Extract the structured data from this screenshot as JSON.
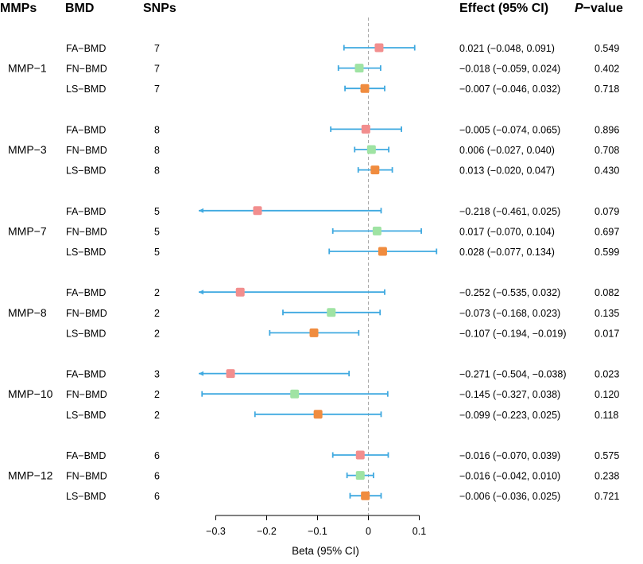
{
  "headers": {
    "mmps": "MMPs",
    "bmd": "BMD",
    "snps": "SNPs",
    "effect": "Effect (95% CI)",
    "pvalue_italic": "P",
    "pvalue_rest": "−value"
  },
  "colors": {
    "FA-BMD": "#f28e8e",
    "FN-BMD": "#9fe3a3",
    "LS-BMD": "#f08c3f",
    "ci_line": "#3fa9e0",
    "ref_line": "#aaaaaa"
  },
  "chart_data": {
    "type": "forest",
    "xlabel": "Beta (95% CI)",
    "xlim": [
      -0.33,
      0.11
    ],
    "xticks": [
      -0.3,
      -0.2,
      -0.1,
      0,
      0.1
    ],
    "xtick_labels": [
      "−0.3",
      "−0.2",
      "−0.1",
      "0",
      "0.1"
    ],
    "reference_line": 0,
    "groups": [
      {
        "name": "MMP−1",
        "rows": [
          {
            "bmd": "FA−BMD",
            "color_key": "FA-BMD",
            "snps": "7",
            "beta": 0.021,
            "lo": -0.048,
            "hi": 0.091,
            "lo_arrow": false,
            "effect": "0.021 (−0.048, 0.091)",
            "p": "0.549"
          },
          {
            "bmd": "FN−BMD",
            "color_key": "FN-BMD",
            "snps": "7",
            "beta": -0.018,
            "lo": -0.059,
            "hi": 0.024,
            "lo_arrow": false,
            "effect": "−0.018 (−0.059, 0.024)",
            "p": "0.402"
          },
          {
            "bmd": "LS−BMD",
            "color_key": "LS-BMD",
            "snps": "7",
            "beta": -0.007,
            "lo": -0.046,
            "hi": 0.032,
            "lo_arrow": false,
            "effect": "−0.007 (−0.046, 0.032)",
            "p": "0.718"
          }
        ]
      },
      {
        "name": "MMP−3",
        "rows": [
          {
            "bmd": "FA−BMD",
            "color_key": "FA-BMD",
            "snps": "8",
            "beta": -0.005,
            "lo": -0.074,
            "hi": 0.065,
            "lo_arrow": false,
            "effect": "−0.005 (−0.074, 0.065)",
            "p": "0.896"
          },
          {
            "bmd": "FN−BMD",
            "color_key": "FN-BMD",
            "snps": "8",
            "beta": 0.006,
            "lo": -0.027,
            "hi": 0.04,
            "lo_arrow": false,
            "effect": "0.006 (−0.027, 0.040)",
            "p": "0.708"
          },
          {
            "bmd": "LS−BMD",
            "color_key": "LS-BMD",
            "snps": "8",
            "beta": 0.013,
            "lo": -0.02,
            "hi": 0.047,
            "lo_arrow": false,
            "effect": "0.013 (−0.020, 0.047)",
            "p": "0.430"
          }
        ]
      },
      {
        "name": "MMP−7",
        "rows": [
          {
            "bmd": "FA−BMD",
            "color_key": "FA-BMD",
            "snps": "5",
            "beta": -0.218,
            "lo": -0.461,
            "hi": 0.025,
            "lo_arrow": true,
            "effect": "−0.218 (−0.461, 0.025)",
            "p": "0.079"
          },
          {
            "bmd": "FN−BMD",
            "color_key": "FN-BMD",
            "snps": "5",
            "beta": 0.017,
            "lo": -0.07,
            "hi": 0.104,
            "lo_arrow": false,
            "effect": "0.017 (−0.070, 0.104)",
            "p": "0.697"
          },
          {
            "bmd": "LS−BMD",
            "color_key": "LS-BMD",
            "snps": "5",
            "beta": 0.028,
            "lo": -0.077,
            "hi": 0.134,
            "lo_arrow": false,
            "effect": "0.028 (−0.077, 0.134)",
            "p": "0.599"
          }
        ]
      },
      {
        "name": "MMP−8",
        "rows": [
          {
            "bmd": "FA−BMD",
            "color_key": "FA-BMD",
            "snps": "2",
            "beta": -0.252,
            "lo": -0.535,
            "hi": 0.032,
            "lo_arrow": true,
            "effect": "−0.252 (−0.535, 0.032)",
            "p": "0.082"
          },
          {
            "bmd": "FN−BMD",
            "color_key": "FN-BMD",
            "snps": "2",
            "beta": -0.073,
            "lo": -0.168,
            "hi": 0.023,
            "lo_arrow": false,
            "effect": "−0.073 (−0.168, 0.023)",
            "p": "0.135"
          },
          {
            "bmd": "LS−BMD",
            "color_key": "LS-BMD",
            "snps": "2",
            "beta": -0.107,
            "lo": -0.194,
            "hi": -0.019,
            "lo_arrow": false,
            "effect": "−0.107 (−0.194, −0.019)",
            "p": "0.017"
          }
        ]
      },
      {
        "name": "MMP−10",
        "rows": [
          {
            "bmd": "FA−BMD",
            "color_key": "FA-BMD",
            "snps": "3",
            "beta": -0.271,
            "lo": -0.504,
            "hi": -0.038,
            "lo_arrow": true,
            "effect": "−0.271 (−0.504, −0.038)",
            "p": "0.023"
          },
          {
            "bmd": "FN−BMD",
            "color_key": "FN-BMD",
            "snps": "2",
            "beta": -0.145,
            "lo": -0.327,
            "hi": 0.038,
            "lo_arrow": false,
            "effect": "−0.145 (−0.327, 0.038)",
            "p": "0.120"
          },
          {
            "bmd": "LS−BMD",
            "color_key": "LS-BMD",
            "snps": "2",
            "beta": -0.099,
            "lo": -0.223,
            "hi": 0.025,
            "lo_arrow": false,
            "effect": "−0.099 (−0.223, 0.025)",
            "p": "0.118"
          }
        ]
      },
      {
        "name": "MMP−12",
        "rows": [
          {
            "bmd": "FA−BMD",
            "color_key": "FA-BMD",
            "snps": "6",
            "beta": -0.016,
            "lo": -0.07,
            "hi": 0.039,
            "lo_arrow": false,
            "effect": "−0.016 (−0.070, 0.039)",
            "p": "0.575"
          },
          {
            "bmd": "FN−BMD",
            "color_key": "FN-BMD",
            "snps": "6",
            "beta": -0.016,
            "lo": -0.042,
            "hi": 0.01,
            "lo_arrow": false,
            "effect": "−0.016 (−0.042, 0.010)",
            "p": "0.238"
          },
          {
            "bmd": "LS−BMD",
            "color_key": "LS-BMD",
            "snps": "6",
            "beta": -0.006,
            "lo": -0.036,
            "hi": 0.025,
            "lo_arrow": false,
            "effect": "−0.006 (−0.036, 0.025)",
            "p": "0.721"
          }
        ]
      }
    ]
  }
}
